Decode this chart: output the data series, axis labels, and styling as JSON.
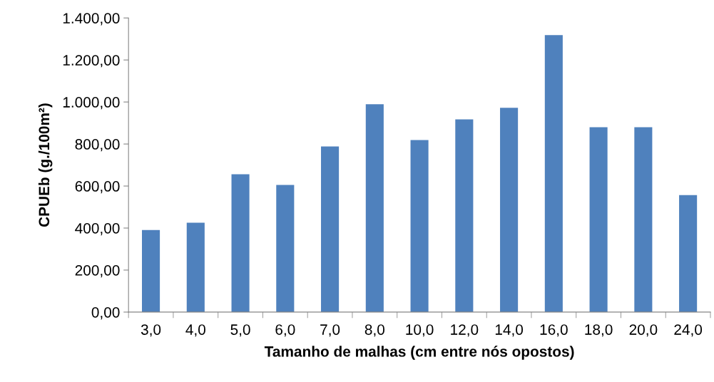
{
  "chart_data": {
    "type": "bar",
    "xlabel": "Tamanho de malhas (cm entre nós opostos)",
    "ylabel": "CPUEb (g./100m²)",
    "categories": [
      "3,0",
      "4,0",
      "5,0",
      "6,0",
      "7,0",
      "8,0",
      "10,0",
      "12,0",
      "14,0",
      "16,0",
      "18,0",
      "20,0",
      "24,0"
    ],
    "values": [
      391,
      425,
      656,
      605,
      788,
      989,
      819,
      917,
      972,
      1318,
      880,
      880,
      557
    ],
    "color": "#4f81bd",
    "ylim": [
      0,
      1400
    ],
    "yticks": [
      {
        "value": 0,
        "label": "0,00"
      },
      {
        "value": 200,
        "label": "200,00"
      },
      {
        "value": 400,
        "label": "400,00"
      },
      {
        "value": 600,
        "label": "600,00"
      },
      {
        "value": 800,
        "label": "800,00"
      },
      {
        "value": 1000,
        "label": "1.000,00"
      },
      {
        "value": 1200,
        "label": "1.200,00"
      },
      {
        "value": 1400,
        "label": "1.400,00"
      }
    ],
    "grid": false,
    "legend": false
  }
}
